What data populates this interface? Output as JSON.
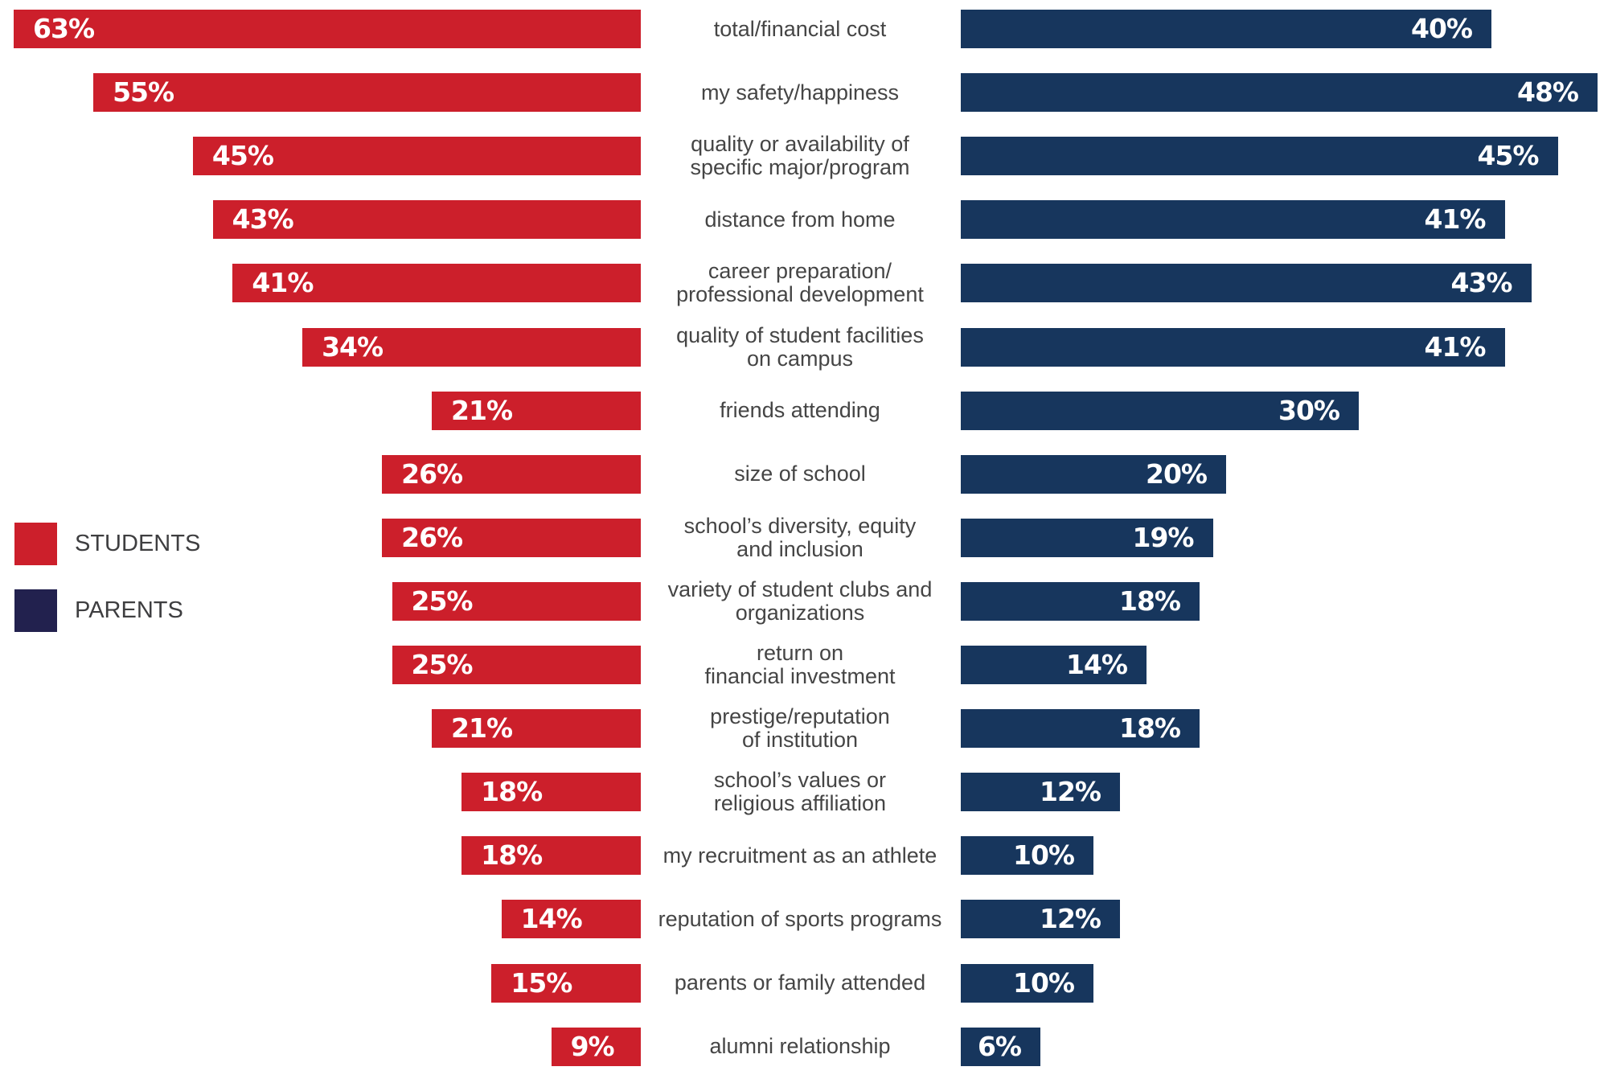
{
  "chart_data": {
    "type": "bar",
    "orientation": "horizontal-diverging",
    "title": "",
    "xlabel": "",
    "ylabel": "",
    "grid": false,
    "legend_position": "left-middle",
    "unit": "%",
    "categories": [
      "total/financial cost",
      "my safety/happiness",
      "quality or availability of\nspecific major/program",
      "distance from home",
      "career preparation/\nprofessional development",
      "quality of student facilities\non campus",
      "friends attending",
      "size of school",
      "school’s diversity, equity\nand inclusion",
      "variety of student clubs and\norganizations",
      "return on\nfinancial investment",
      "prestige/reputation\nof institution",
      "school’s values or\nreligious affiliation",
      "my recruitment as an athlete",
      "reputation of sports programs",
      "parents or family attended",
      "alumni relationship"
    ],
    "series": [
      {
        "name": "STUDENTS",
        "color": "#cc1f2b",
        "side": "left",
        "values": [
          63,
          55,
          45,
          43,
          41,
          34,
          21,
          26,
          26,
          25,
          25,
          21,
          18,
          18,
          14,
          15,
          9
        ],
        "labels": [
          "63%",
          "55%",
          "45%",
          "43%",
          "41%",
          "34%",
          "21%",
          "26%",
          "26%",
          "25%",
          "25%",
          "21%",
          "18%",
          "18%",
          "14%",
          "15%",
          "9%"
        ]
      },
      {
        "name": "PARENTS",
        "color": "#17365d",
        "side": "right",
        "values": [
          40,
          48,
          45,
          41,
          43,
          41,
          30,
          20,
          19,
          18,
          14,
          18,
          12,
          10,
          12,
          10,
          6
        ],
        "labels": [
          "40%",
          "48%",
          "45%",
          "41%",
          "43%",
          "41%",
          "30%",
          "20%",
          "19%",
          "18%",
          "14%",
          "18%",
          "12%",
          "10%",
          "12%",
          "10%",
          "6%"
        ]
      }
    ]
  },
  "legend": {
    "items": [
      {
        "label": "STUDENTS",
        "color": "#cc1f2b"
      },
      {
        "label": "PARENTS",
        "color": "#22214e"
      }
    ]
  }
}
